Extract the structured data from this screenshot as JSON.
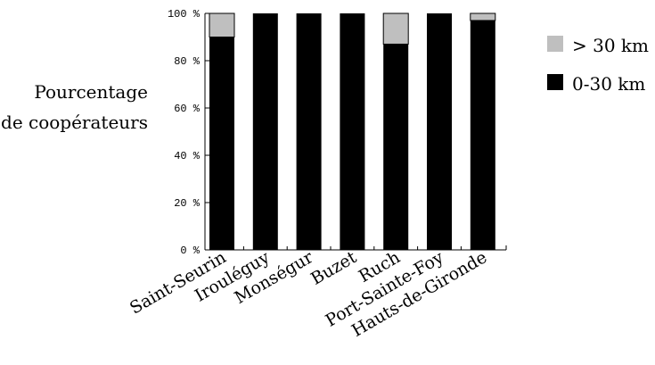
{
  "chart_data": {
    "type": "bar",
    "stacked": true,
    "categories": [
      "Saint-Seurin",
      "Irouléguy",
      "Monségur",
      "Buzet",
      "Ruch",
      "Port-Sainte-Foy",
      "Hauts-de-Gironde"
    ],
    "series": [
      {
        "name": "0-30 km",
        "color": "#000000",
        "values": [
          90,
          100,
          100,
          100,
          87,
          100,
          97
        ]
      },
      {
        "name": "> 30 km",
        "color": "#bfbfbf",
        "values": [
          10,
          0,
          0,
          0,
          13,
          0,
          3
        ]
      }
    ],
    "ylim": [
      0,
      100
    ],
    "yticks": [
      0,
      20,
      40,
      60,
      80,
      100
    ],
    "ytick_labels": [
      "0 %",
      "20 %",
      "40 %",
      "60 %",
      "80 %",
      "100 %"
    ],
    "ylabel": [
      "Pourcentage",
      "de coopérateurs"
    ],
    "legend": {
      "placement": "top-right",
      "items": [
        "> 30 km",
        "0-30 km"
      ]
    }
  }
}
